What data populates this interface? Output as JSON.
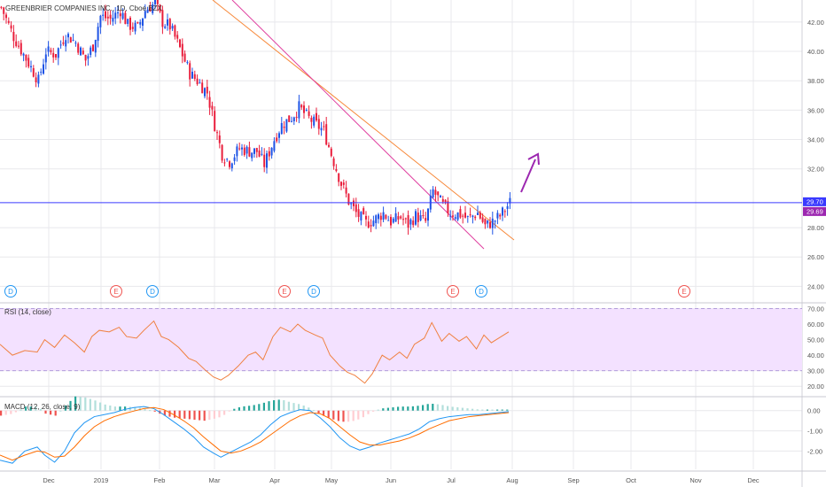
{
  "title": "GREENBRIER COMPANIES INC., 1D, Cboe BZX",
  "colors": {
    "up": "#1e53e5",
    "down": "#e91e3c",
    "grid": "#e8e8ec",
    "axis_text": "#555555",
    "hline": "#3a3aff",
    "trend_orange": "#f7893b",
    "trend_pink": "#e040a0",
    "arrow": "#9c27b0",
    "rsi": "#f08040",
    "rsi_band": "#f3e1ff",
    "macd_line": "#2196f3",
    "signal_line": "#ff6d00",
    "hist_pos": "#26a69a",
    "hist_pos_light": "#b2dfdb",
    "hist_neg": "#ef5350",
    "hist_neg_light": "#ffcdd2",
    "badge_label": "#ffffff"
  },
  "x_axis": {
    "labels": [
      "Dec",
      "2019",
      "Feb",
      "Mar",
      "Apr",
      "May",
      "Jun",
      "Jul",
      "Aug",
      "Sep",
      "Oct",
      "Nov",
      "Dec"
    ]
  },
  "price_axis": {
    "ticks": [
      "42.00",
      "40.00",
      "38.00",
      "36.00",
      "34.00",
      "32.00",
      "28.00",
      "26.00",
      "24.00"
    ],
    "badges": [
      {
        "label": "29.70",
        "color": "#3a3aff"
      },
      {
        "label": "29.69",
        "color": "#9c27b0"
      }
    ]
  },
  "event_markers": [
    {
      "label": "D",
      "kind": "dividend"
    },
    {
      "label": "E",
      "kind": "earnings"
    },
    {
      "label": "D",
      "kind": "dividend"
    },
    {
      "label": "E",
      "kind": "earnings"
    },
    {
      "label": "D",
      "kind": "dividend"
    },
    {
      "label": "E",
      "kind": "earnings"
    },
    {
      "label": "D",
      "kind": "dividend"
    },
    {
      "label": "E",
      "kind": "earnings"
    }
  ],
  "rsi_panel": {
    "title": "RSI (14, close)",
    "ticks": [
      "70.00",
      "60.00",
      "50.00",
      "40.00",
      "30.00",
      "20.00"
    ]
  },
  "macd_panel": {
    "title": "MACD (12, 26, close, 9)",
    "ticks": [
      "0.00",
      "-1.00",
      "-2.00"
    ]
  },
  "chart_data": {
    "type": "candlestick",
    "title": "GREENBRIER COMPANIES INC., 1D, Cboe BZX",
    "ylim": [
      23,
      43.5
    ],
    "ytick_values": [
      42,
      40,
      38,
      36,
      34,
      32,
      28,
      26,
      24
    ],
    "close_series_approx": [
      [
        0,
        43.0
      ],
      [
        5,
        41.0
      ],
      [
        10,
        39.5
      ],
      [
        15,
        38.0
      ],
      [
        18,
        40.0
      ],
      [
        22,
        39.8
      ],
      [
        26,
        41.2
      ],
      [
        30,
        40.6
      ],
      [
        34,
        39.4
      ],
      [
        37,
        40.4
      ],
      [
        40,
        42.4
      ],
      [
        44,
        42.2
      ],
      [
        48,
        42.8
      ],
      [
        51,
        41.8
      ],
      [
        55,
        41.6
      ],
      [
        58,
        42.8
      ],
      [
        62,
        43.3
      ],
      [
        65,
        42.0
      ],
      [
        68,
        41.7
      ],
      [
        72,
        40.2
      ],
      [
        76,
        38.5
      ],
      [
        79,
        38.0
      ],
      [
        83,
        37.2
      ],
      [
        86,
        35.0
      ],
      [
        89,
        33.0
      ],
      [
        92,
        32.5
      ],
      [
        96,
        33.4
      ],
      [
        100,
        33.2
      ],
      [
        103,
        33.2
      ],
      [
        106,
        32.3
      ],
      [
        110,
        34.0
      ],
      [
        113,
        35.0
      ],
      [
        117,
        35.5
      ],
      [
        120,
        36.2
      ],
      [
        123,
        35.6
      ],
      [
        127,
        35.0
      ],
      [
        130,
        34.6
      ],
      [
        133,
        33.0
      ],
      [
        137,
        31.0
      ],
      [
        140,
        29.8
      ],
      [
        143,
        29.0
      ],
      [
        147,
        28.3
      ],
      [
        150,
        28.5
      ],
      [
        154,
        29.0
      ],
      [
        157,
        28.4
      ],
      [
        161,
        28.7
      ],
      [
        164,
        28.2
      ],
      [
        167,
        28.8
      ],
      [
        171,
        28.4
      ],
      [
        174,
        30.5
      ],
      [
        178,
        29.5
      ],
      [
        181,
        29.0
      ],
      [
        185,
        28.9
      ],
      [
        188,
        28.6
      ],
      [
        192,
        29.0
      ],
      [
        195,
        28.1
      ],
      [
        198,
        28.4
      ],
      [
        201,
        28.8
      ],
      [
        205,
        29.7
      ]
    ],
    "horizontal_line": 29.7,
    "last_price": 29.69,
    "rsi": {
      "ylim": [
        15,
        72
      ],
      "upper_band": 70,
      "lower_band": 30,
      "values_approx": [
        [
          0,
          47
        ],
        [
          5,
          40
        ],
        [
          10,
          43
        ],
        [
          15,
          42
        ],
        [
          18,
          50
        ],
        [
          22,
          45
        ],
        [
          26,
          53
        ],
        [
          30,
          48
        ],
        [
          34,
          42
        ],
        [
          37,
          52
        ],
        [
          40,
          56
        ],
        [
          44,
          55
        ],
        [
          48,
          58
        ],
        [
          51,
          52
        ],
        [
          55,
          51
        ],
        [
          58,
          56
        ],
        [
          62,
          62
        ],
        [
          65,
          52
        ],
        [
          68,
          50
        ],
        [
          72,
          45
        ],
        [
          76,
          38
        ],
        [
          79,
          36
        ],
        [
          83,
          30
        ],
        [
          86,
          26
        ],
        [
          89,
          24
        ],
        [
          92,
          27
        ],
        [
          96,
          33
        ],
        [
          100,
          40
        ],
        [
          103,
          42
        ],
        [
          106,
          37
        ],
        [
          110,
          52
        ],
        [
          113,
          58
        ],
        [
          117,
          55
        ],
        [
          120,
          60
        ],
        [
          123,
          56
        ],
        [
          127,
          53
        ],
        [
          130,
          51
        ],
        [
          133,
          40
        ],
        [
          137,
          33
        ],
        [
          140,
          29
        ],
        [
          143,
          27
        ],
        [
          147,
          22
        ],
        [
          150,
          28
        ],
        [
          154,
          40
        ],
        [
          157,
          37
        ],
        [
          161,
          42
        ],
        [
          164,
          38
        ],
        [
          167,
          47
        ],
        [
          171,
          51
        ],
        [
          174,
          61
        ],
        [
          178,
          49
        ],
        [
          181,
          54
        ],
        [
          185,
          49
        ],
        [
          188,
          52
        ],
        [
          192,
          44
        ],
        [
          195,
          53
        ],
        [
          198,
          48
        ],
        [
          201,
          51
        ],
        [
          205,
          55
        ]
      ]
    },
    "macd": {
      "ylim": [
        -2.9,
        0.6
      ],
      "macd_values_approx": [
        [
          0,
          -2.45
        ],
        [
          5,
          -2.6
        ],
        [
          10,
          -2.0
        ],
        [
          15,
          -1.8
        ],
        [
          18,
          -2.2
        ],
        [
          22,
          -2.55
        ],
        [
          26,
          -2.0
        ],
        [
          30,
          -1.1
        ],
        [
          34,
          -0.6
        ],
        [
          38,
          -0.3
        ],
        [
          42,
          -0.2
        ],
        [
          46,
          -0.1
        ],
        [
          50,
          0.05
        ],
        [
          54,
          0.15
        ],
        [
          58,
          0.2
        ],
        [
          62,
          0.1
        ],
        [
          66,
          -0.2
        ],
        [
          70,
          -0.55
        ],
        [
          74,
          -0.9
        ],
        [
          78,
          -1.3
        ],
        [
          82,
          -1.8
        ],
        [
          86,
          -2.1
        ],
        [
          89,
          -2.3
        ],
        [
          93,
          -2.05
        ],
        [
          97,
          -1.8
        ],
        [
          101,
          -1.55
        ],
        [
          105,
          -1.2
        ],
        [
          109,
          -0.7
        ],
        [
          113,
          -0.3
        ],
        [
          117,
          -0.1
        ],
        [
          121,
          0.05
        ],
        [
          125,
          0.0
        ],
        [
          129,
          -0.35
        ],
        [
          133,
          -0.8
        ],
        [
          137,
          -1.35
        ],
        [
          141,
          -1.75
        ],
        [
          145,
          -1.95
        ],
        [
          149,
          -1.8
        ],
        [
          153,
          -1.6
        ],
        [
          157,
          -1.45
        ],
        [
          161,
          -1.3
        ],
        [
          165,
          -1.15
        ],
        [
          169,
          -0.9
        ],
        [
          173,
          -0.55
        ],
        [
          177,
          -0.4
        ],
        [
          181,
          -0.3
        ],
        [
          185,
          -0.25
        ],
        [
          189,
          -0.2
        ],
        [
          193,
          -0.2
        ],
        [
          197,
          -0.15
        ],
        [
          201,
          -0.1
        ],
        [
          205,
          -0.05
        ]
      ],
      "signal_values_approx": [
        [
          0,
          -2.2
        ],
        [
          5,
          -2.45
        ],
        [
          10,
          -2.2
        ],
        [
          15,
          -2.0
        ],
        [
          18,
          -2.05
        ],
        [
          22,
          -2.3
        ],
        [
          26,
          -2.25
        ],
        [
          30,
          -1.8
        ],
        [
          34,
          -1.25
        ],
        [
          38,
          -0.8
        ],
        [
          42,
          -0.5
        ],
        [
          46,
          -0.3
        ],
        [
          50,
          -0.15
        ],
        [
          54,
          -0.02
        ],
        [
          58,
          0.1
        ],
        [
          62,
          0.15
        ],
        [
          66,
          0.05
        ],
        [
          70,
          -0.2
        ],
        [
          74,
          -0.5
        ],
        [
          78,
          -0.85
        ],
        [
          82,
          -1.3
        ],
        [
          86,
          -1.7
        ],
        [
          89,
          -2.0
        ],
        [
          93,
          -2.1
        ],
        [
          97,
          -2.0
        ],
        [
          101,
          -1.8
        ],
        [
          105,
          -1.55
        ],
        [
          109,
          -1.2
        ],
        [
          113,
          -0.85
        ],
        [
          117,
          -0.5
        ],
        [
          121,
          -0.25
        ],
        [
          125,
          -0.1
        ],
        [
          129,
          -0.15
        ],
        [
          133,
          -0.4
        ],
        [
          137,
          -0.8
        ],
        [
          141,
          -1.2
        ],
        [
          145,
          -1.55
        ],
        [
          149,
          -1.7
        ],
        [
          153,
          -1.7
        ],
        [
          157,
          -1.6
        ],
        [
          161,
          -1.5
        ],
        [
          165,
          -1.35
        ],
        [
          169,
          -1.15
        ],
        [
          173,
          -0.9
        ],
        [
          177,
          -0.7
        ],
        [
          181,
          -0.5
        ],
        [
          185,
          -0.4
        ],
        [
          189,
          -0.3
        ],
        [
          193,
          -0.25
        ],
        [
          197,
          -0.2
        ],
        [
          201,
          -0.15
        ],
        [
          205,
          -0.1
        ]
      ]
    }
  }
}
